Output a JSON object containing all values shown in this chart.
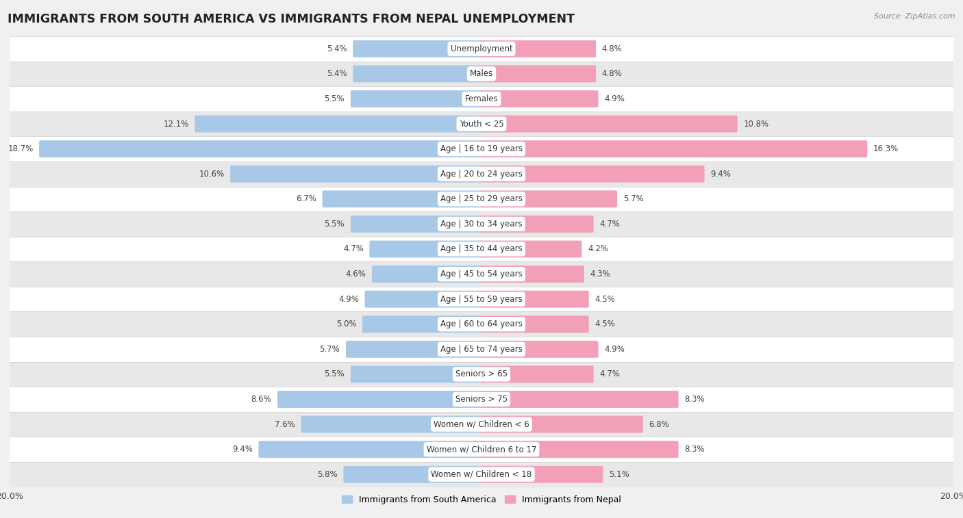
{
  "title": "IMMIGRANTS FROM SOUTH AMERICA VS IMMIGRANTS FROM NEPAL UNEMPLOYMENT",
  "source": "Source: ZipAtlas.com",
  "categories": [
    "Unemployment",
    "Males",
    "Females",
    "Youth < 25",
    "Age | 16 to 19 years",
    "Age | 20 to 24 years",
    "Age | 25 to 29 years",
    "Age | 30 to 34 years",
    "Age | 35 to 44 years",
    "Age | 45 to 54 years",
    "Age | 55 to 59 years",
    "Age | 60 to 64 years",
    "Age | 65 to 74 years",
    "Seniors > 65",
    "Seniors > 75",
    "Women w/ Children < 6",
    "Women w/ Children 6 to 17",
    "Women w/ Children < 18"
  ],
  "south_america": [
    5.4,
    5.4,
    5.5,
    12.1,
    18.7,
    10.6,
    6.7,
    5.5,
    4.7,
    4.6,
    4.9,
    5.0,
    5.7,
    5.5,
    8.6,
    7.6,
    9.4,
    5.8
  ],
  "nepal": [
    4.8,
    4.8,
    4.9,
    10.8,
    16.3,
    9.4,
    5.7,
    4.7,
    4.2,
    4.3,
    4.5,
    4.5,
    4.9,
    4.7,
    8.3,
    6.8,
    8.3,
    5.1
  ],
  "south_america_color": "#a8c8e8",
  "nepal_color": "#f2a0b8",
  "south_america_label": "Immigrants from South America",
  "nepal_label": "Immigrants from Nepal",
  "xlim": 20.0,
  "row_colors_even": "#ffffff",
  "row_colors_odd": "#e8e8e8",
  "bar_height": 0.58,
  "title_fontsize": 12.5,
  "label_fontsize": 8.5,
  "value_fontsize": 8.5,
  "axis_label_fontsize": 9
}
